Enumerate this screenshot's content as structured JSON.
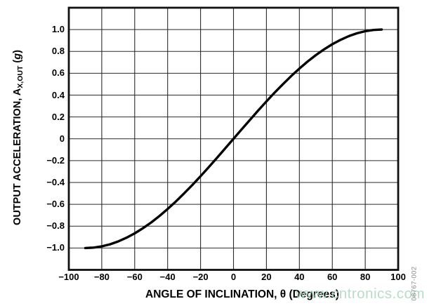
{
  "figure": {
    "watermark": "www.cntronics.com",
    "watermark_color": "#aed7bd",
    "figure_number": "08767-002",
    "figure_number_color": "#8a8a8a"
  },
  "chart_data": {
    "type": "line",
    "title": "",
    "xlabel": "ANGLE OF INCLINATION, θ (Degrees)",
    "ylabel": "OUTPUT ACCELERATION, AX,OUT (g)",
    "ylabel_parts": {
      "main": "OUTPUT ACCELERATION, A",
      "sub": "X,OUT",
      "pre_unit": " (",
      "unit": "g",
      "post_unit": ")"
    },
    "xlim": [
      -100,
      100
    ],
    "ylim": [
      -1.2,
      1.2
    ],
    "grid": true,
    "legend": "none",
    "x_ticks": [
      -100,
      -80,
      -60,
      -40,
      -20,
      0,
      20,
      40,
      60,
      80,
      100
    ],
    "x_tick_labels": [
      "−100",
      "−80",
      "−60",
      "−40",
      "−20",
      "0",
      "20",
      "40",
      "60",
      "80",
      "100"
    ],
    "y_ticks": [
      1.0,
      0.8,
      0.6,
      0.4,
      0.2,
      0,
      -0.2,
      -0.4,
      -0.6,
      -0.8,
      -1.0
    ],
    "y_tick_labels": [
      "1.0",
      "0.8",
      "0.6",
      "0.4",
      "0.2",
      "0",
      "−0.2",
      "−0.4",
      "−0.6",
      "−0.8",
      "−1.0"
    ],
    "series": [
      {
        "x": [
          -90,
          -85,
          -80,
          -75,
          -70,
          -65,
          -60,
          -55,
          -50,
          -45,
          -40,
          -35,
          -30,
          -25,
          -20,
          -15,
          -10,
          -5,
          0,
          5,
          10,
          15,
          20,
          25,
          30,
          35,
          40,
          45,
          50,
          55,
          60,
          65,
          70,
          75,
          80,
          85,
          90
        ],
        "y": [
          -1.0,
          -0.996,
          -0.985,
          -0.966,
          -0.94,
          -0.906,
          -0.866,
          -0.819,
          -0.766,
          -0.707,
          -0.643,
          -0.574,
          -0.5,
          -0.423,
          -0.342,
          -0.259,
          -0.174,
          -0.087,
          0,
          0.087,
          0.174,
          0.259,
          0.342,
          0.423,
          0.5,
          0.574,
          0.643,
          0.707,
          0.766,
          0.819,
          0.866,
          0.906,
          0.94,
          0.966,
          0.985,
          0.996,
          1.0
        ]
      }
    ],
    "colors": {
      "line": "#000000",
      "grid": "#2a2a2a",
      "border": "#111111",
      "text": "#000000"
    }
  }
}
